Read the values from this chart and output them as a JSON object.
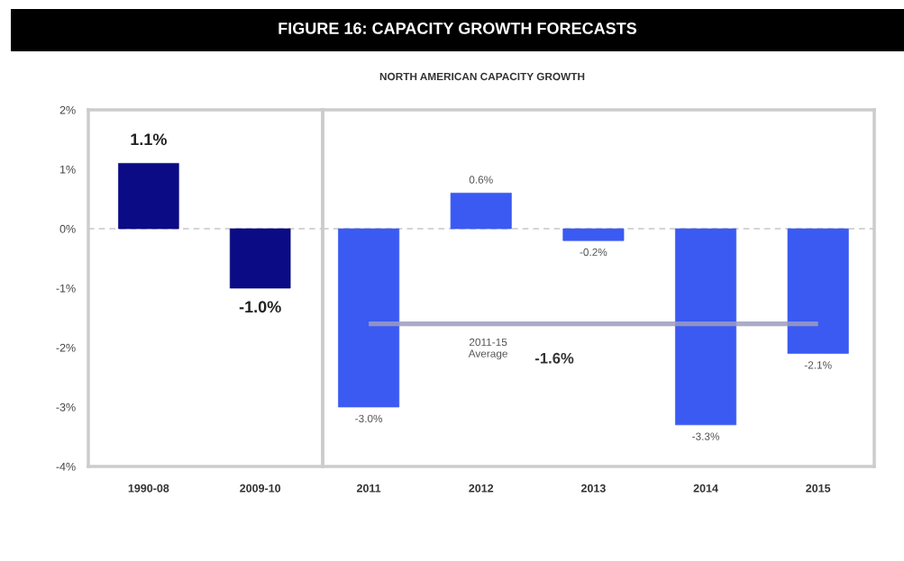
{
  "chart_data": [
    {
      "type": "bar",
      "categories": [
        "1990-08",
        "2009-10"
      ],
      "values": [
        1.1,
        -1.0
      ],
      "colors": [
        "#0b0b85",
        "#0b0b85"
      ],
      "value_labels": [
        "1.1%",
        "-1.0%"
      ],
      "ylim": [
        -4,
        2
      ],
      "yticks": [
        {
          "value": 2,
          "label": "2%"
        },
        {
          "value": 1,
          "label": "1%"
        },
        {
          "value": 0,
          "label": "0%"
        },
        {
          "value": -1,
          "label": "-1%"
        },
        {
          "value": -2,
          "label": "-2%"
        },
        {
          "value": -3,
          "label": "-3%"
        },
        {
          "value": -4,
          "label": "-4%"
        }
      ],
      "ref_lines": [
        {
          "axis": "y",
          "value": 0,
          "color": "#c8c8c8",
          "line_style": "dashed"
        }
      ]
    },
    {
      "type": "bar",
      "title": "FIGURE 16: CAPACITY GROWTH FORECASTS",
      "subtitle": "NORTH AMERICAN CAPACITY GROWTH",
      "categories": [
        "2011",
        "2012",
        "2013",
        "2014",
        "2015"
      ],
      "series": [
        {
          "type": "bar",
          "color": "#3a5af2",
          "values": [
            -3.0,
            0.6,
            -0.2,
            -3.3,
            -2.1
          ],
          "value_labels": [
            "-3.0%",
            "0.6%",
            "-0.2%",
            "-3.3%",
            "-2.1%"
          ]
        },
        {
          "type": "line",
          "color": "#9c9cc0",
          "values": [
            -1.6,
            -1.6,
            -1.6,
            -1.6,
            -1.6
          ]
        }
      ],
      "annotations": [
        "2011-15\nAverage",
        "-1.6%"
      ],
      "ylim": [
        -4,
        2
      ],
      "tick_labels": "x",
      "ref_lines": [
        {
          "axis": "y",
          "value": 0,
          "color": "#c8c8c8",
          "line_style": "dashed"
        }
      ]
    }
  ]
}
